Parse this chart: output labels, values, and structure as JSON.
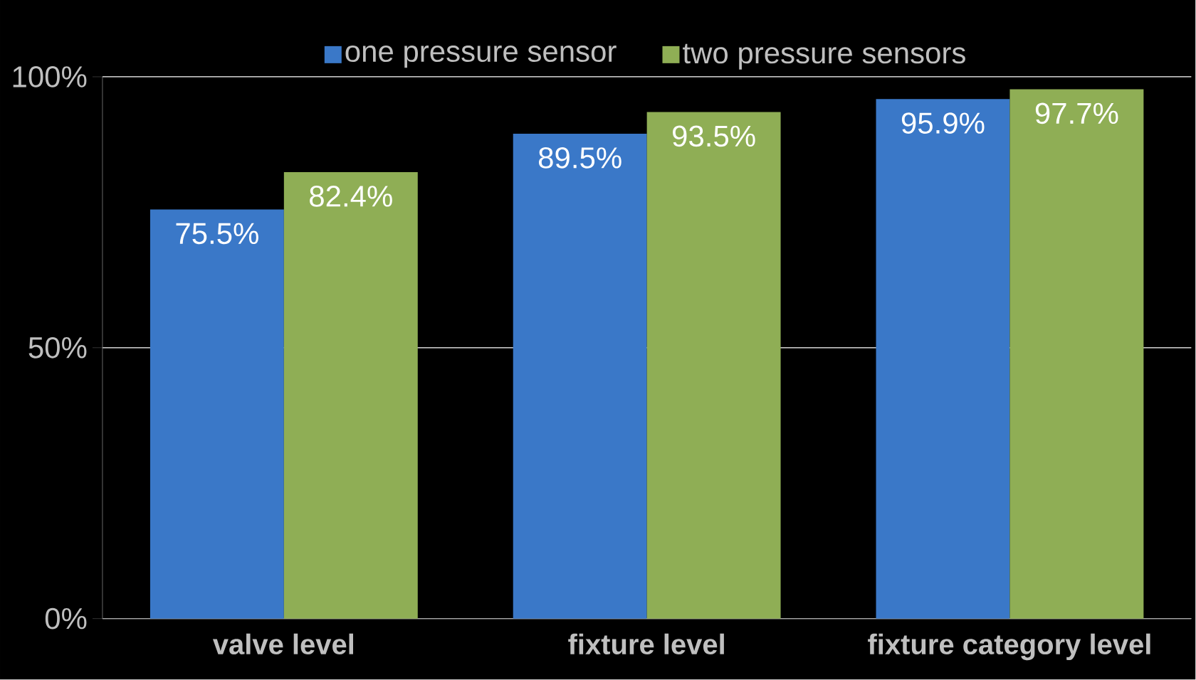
{
  "chart_data": {
    "type": "bar",
    "categories": [
      "valve level",
      "fixture level",
      "fixture category level"
    ],
    "series": [
      {
        "name": "one pressure sensor",
        "color": "#3a78c8",
        "values": [
          75.5,
          89.5,
          95.9
        ],
        "value_labels": [
          "75.5%",
          "89.5%",
          "95.9%"
        ]
      },
      {
        "name": "two pressure sensors",
        "color": "#8fae55",
        "values": [
          82.4,
          93.5,
          97.7
        ],
        "value_labels": [
          "82.4%",
          "93.5%",
          "97.7%"
        ]
      }
    ],
    "ylim": [
      0,
      100
    ],
    "yticks": [
      {
        "value": 0,
        "label": "0%"
      },
      {
        "value": 50,
        "label": "50%"
      },
      {
        "value": 100,
        "label": "100%"
      }
    ],
    "grid": "y",
    "legend": "top"
  }
}
